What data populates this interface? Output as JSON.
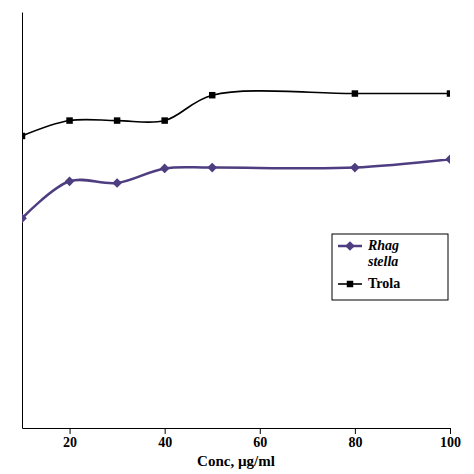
{
  "chart_data": {
    "type": "line",
    "x_label": "Conc, µg/ml",
    "x": [
      10,
      20,
      30,
      40,
      50,
      80,
      100
    ],
    "series": [
      {
        "name": "Rhag stella",
        "color": "#4e3d80",
        "marker": "diamond",
        "values": [
          50.4,
          59.3,
          58.9,
          62.4,
          62.6,
          62.6,
          64.6
        ]
      },
      {
        "name": "Trola",
        "color": "#000000",
        "marker": "square",
        "values": [
          70.2,
          73.9,
          73.9,
          73.9,
          80.0,
          80.4,
          80.4
        ]
      }
    ],
    "xlim": [
      10,
      100
    ],
    "xticks": [
      20,
      40,
      60,
      80,
      100
    ],
    "ylim": [
      0,
      100
    ],
    "yticks": [],
    "tick_labels": "x",
    "legend": "right"
  }
}
